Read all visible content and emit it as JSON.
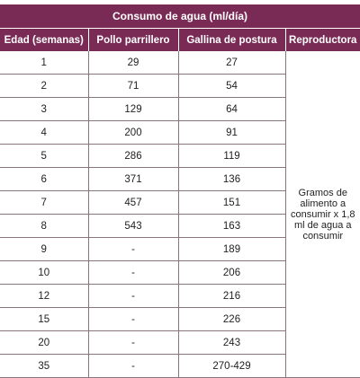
{
  "table": {
    "title": "Consumo de agua (ml/día)",
    "headers": [
      "Edad (semanas)",
      "Pollo parrillero",
      "Gallina de postura",
      "Reproductora"
    ],
    "rows": [
      {
        "edad": "1",
        "pollo": "29",
        "gallina": "27"
      },
      {
        "edad": "2",
        "pollo": "71",
        "gallina": "54"
      },
      {
        "edad": "3",
        "pollo": "129",
        "gallina": "64"
      },
      {
        "edad": "4",
        "pollo": "200",
        "gallina": "91"
      },
      {
        "edad": "5",
        "pollo": "286",
        "gallina": "119"
      },
      {
        "edad": "6",
        "pollo": "371",
        "gallina": "136"
      },
      {
        "edad": "7",
        "pollo": "457",
        "gallina": "151"
      },
      {
        "edad": "8",
        "pollo": "543",
        "gallina": "163"
      },
      {
        "edad": "9",
        "pollo": "-",
        "gallina": "189"
      },
      {
        "edad": "10",
        "pollo": "-",
        "gallina": "206"
      },
      {
        "edad": "12",
        "pollo": "-",
        "gallina": "216"
      },
      {
        "edad": "15",
        "pollo": "-",
        "gallina": "226"
      },
      {
        "edad": "20",
        "pollo": "-",
        "gallina": "243"
      },
      {
        "edad": "35",
        "pollo": "-",
        "gallina": "270-429"
      }
    ],
    "reproductora_note": "Gramos de alimento a consumir x 1,8 ml de agua a consumir"
  },
  "colors": {
    "header_bg": "#7a2b55",
    "header_text": "#ffffff",
    "grid_line": "#8a7480"
  }
}
